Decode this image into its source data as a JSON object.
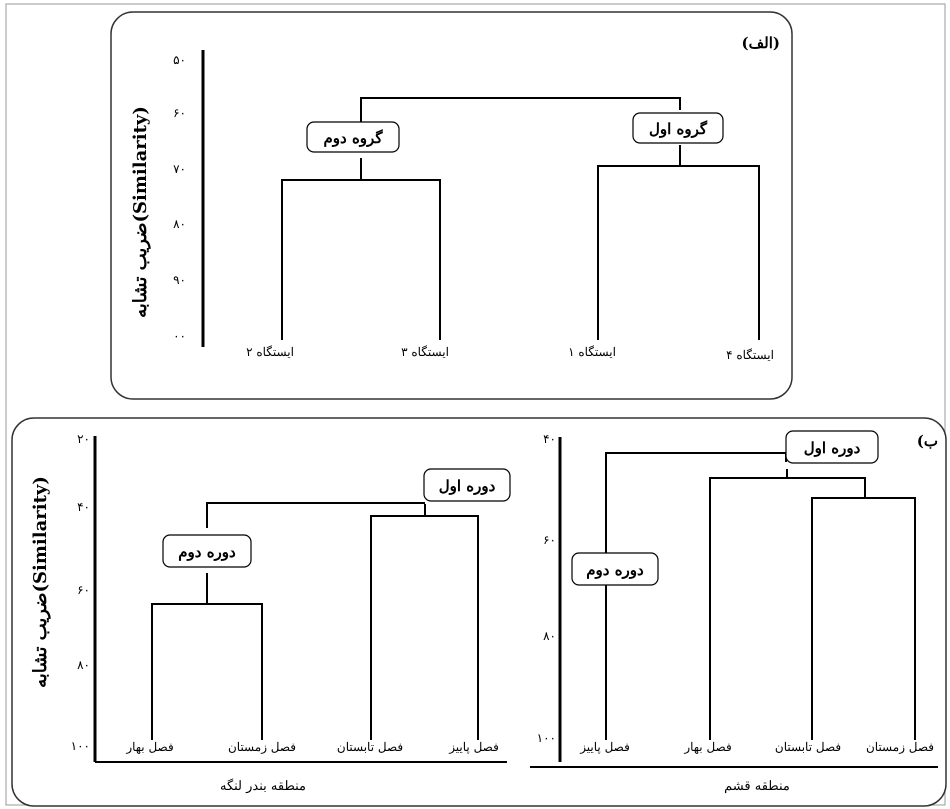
{
  "panel_a": {
    "label": "(الف)",
    "ylabel": "ضریب تشابه(Similarity)",
    "ticks": [
      "۵۰",
      "۶۰",
      "۷۰",
      "۸۰",
      "۹۰",
      "۰۰"
    ],
    "leaves": [
      "ایستگاه ۲",
      "ایستگاه ۳",
      "ایستگاه ۱",
      "ایستگاه ۴"
    ],
    "groups": [
      "گروه دوم",
      "گروه اول"
    ]
  },
  "panel_b_left": {
    "ylabel": "ضریب تشابه(Similarity)",
    "ticks": [
      "۲۰",
      "۴۰",
      "۶۰",
      "۸۰",
      "۱۰۰"
    ],
    "leaves": [
      "فصل بهار",
      "فصل زمستان",
      "فصل تابستان",
      "فصل پاییز"
    ],
    "groups": [
      "دوره دوم",
      "دوره اول"
    ],
    "region": "منطقه بندر لنگه"
  },
  "panel_b_right": {
    "label": "(ب",
    "ticks": [
      "۴۰",
      "۶۰",
      "۸۰",
      "۱۰۰"
    ],
    "leaves": [
      "فصل پاییز",
      "فصل بهار",
      "فصل تابستان",
      "فصل زمستان"
    ],
    "groups": [
      "دوره دوم",
      "دوره اول"
    ],
    "region": "منطقه قشم"
  }
}
